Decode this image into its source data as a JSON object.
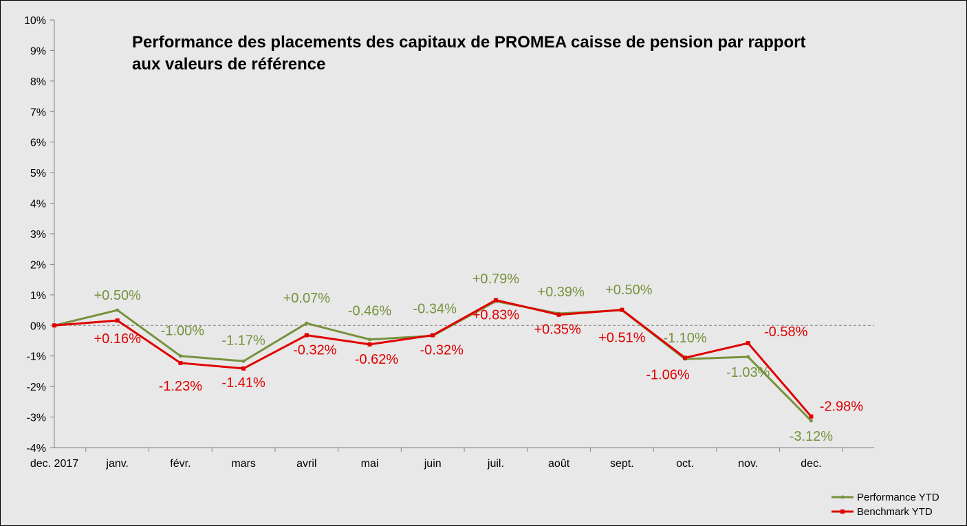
{
  "chart_data": {
    "type": "line",
    "title_lines": [
      "Performance des placements des capitaux de PROMEA caisse de pension par rapport",
      "aux valeurs de référence"
    ],
    "categories": [
      "dec. 2017",
      "janv.",
      "févr.",
      "mars",
      "avril",
      "mai",
      "juin",
      "juil.",
      "août",
      "sept.",
      "oct.",
      "nov.",
      "dec."
    ],
    "y_ticks": [
      "10%",
      "9%",
      "8%",
      "7%",
      "6%",
      "5%",
      "4%",
      "3%",
      "2%",
      "1%",
      "0%",
      "-1%",
      "-2%",
      "-3%",
      "-4%"
    ],
    "ylim": [
      -4,
      10
    ],
    "unit": "%",
    "zero_line": "dashed",
    "legend_position": "bottom-right",
    "series": [
      {
        "name": "Performance YTD",
        "color": "#76923c",
        "values": [
          0,
          0.5,
          -1.0,
          -1.17,
          0.07,
          -0.46,
          -0.34,
          0.79,
          0.39,
          0.5,
          -1.1,
          -1.03,
          -3.12
        ],
        "labels": [
          "",
          "+0.50%",
          "-1.00%",
          "-1.17%",
          "+0.07%",
          "-0.46%",
          "-0.34%",
          "+0.79%",
          "+0.39%",
          "+0.50%",
          "-1.10%",
          "-1.03%",
          "-3.12%"
        ]
      },
      {
        "name": "Benchmark YTD",
        "color": "#e00000",
        "values": [
          0,
          0.16,
          -1.23,
          -1.41,
          -0.32,
          -0.62,
          -0.32,
          0.83,
          0.35,
          0.51,
          -1.06,
          -0.58,
          -2.98
        ],
        "labels": [
          "",
          "+0.16%",
          "-1.23%",
          "-1.41%",
          "-0.32%",
          "-0.62%",
          "-0.32%",
          "+0.83%",
          "+0.35%",
          "+0.51%",
          "-1.06%",
          "-0.58%",
          "-2.98%"
        ]
      }
    ]
  }
}
